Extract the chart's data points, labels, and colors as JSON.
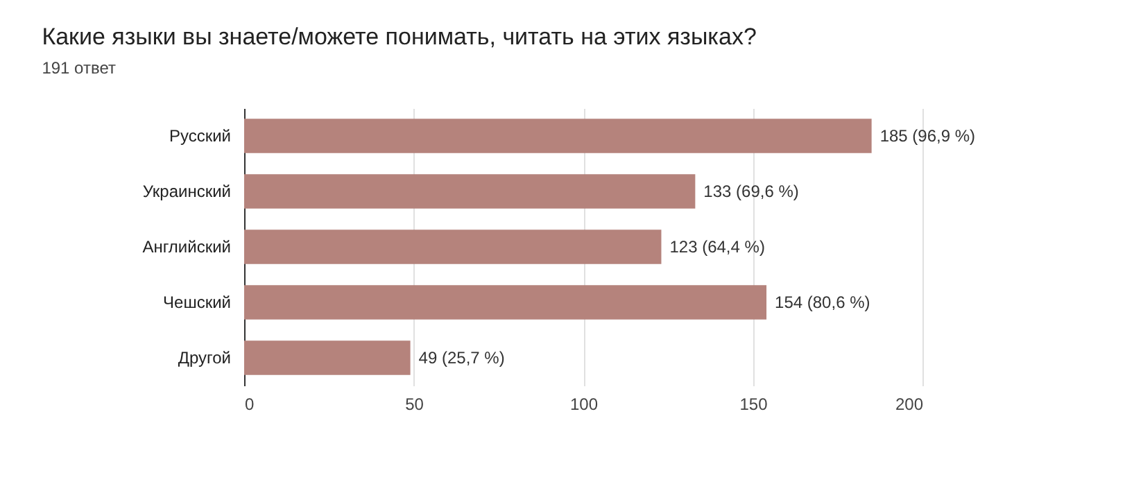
{
  "chart_data": {
    "type": "bar",
    "orientation": "horizontal",
    "title": "Какие языки вы знаете/можете понимать, читать на этих языках?",
    "subtitle": "191 ответ",
    "categories": [
      "Русский",
      "Украинский",
      "Английский",
      "Чешский",
      "Другой"
    ],
    "values": [
      185,
      133,
      123,
      154,
      49
    ],
    "value_labels": [
      "185 (96,9 %)",
      "133 (69,6 %)",
      "123 (64,4 %)",
      "154 (80,6 %)",
      "49 (25,7 %)"
    ],
    "color": "#b5837c",
    "xlim": [
      0,
      200
    ],
    "xticks": [
      0,
      50,
      100,
      150,
      200
    ],
    "grid": "x"
  }
}
